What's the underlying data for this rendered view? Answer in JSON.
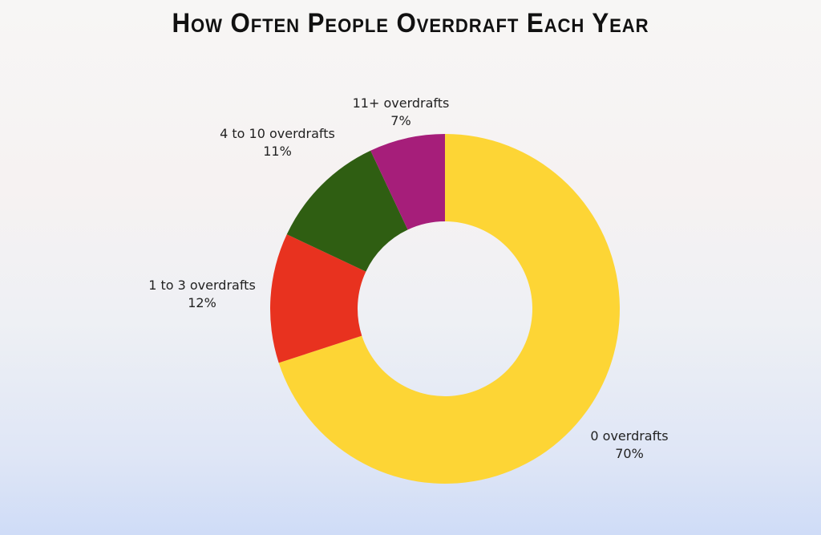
{
  "chart_data": {
    "type": "pie",
    "variant": "donut",
    "title": "How Often People Overdraft Each Year",
    "start": "top, clockwise",
    "categories": [
      "0 overdrafts",
      "1 to 3 overdrafts",
      "4 to 10 overdrafts",
      "11+ overdrafts"
    ],
    "values": [
      70,
      12,
      11,
      7
    ],
    "value_labels": [
      "70%",
      "12%",
      "11%",
      "7%"
    ],
    "colors": [
      "#FDD535",
      "#E8321F",
      "#2F5E12",
      "#A61E7A"
    ],
    "legend": "none"
  }
}
